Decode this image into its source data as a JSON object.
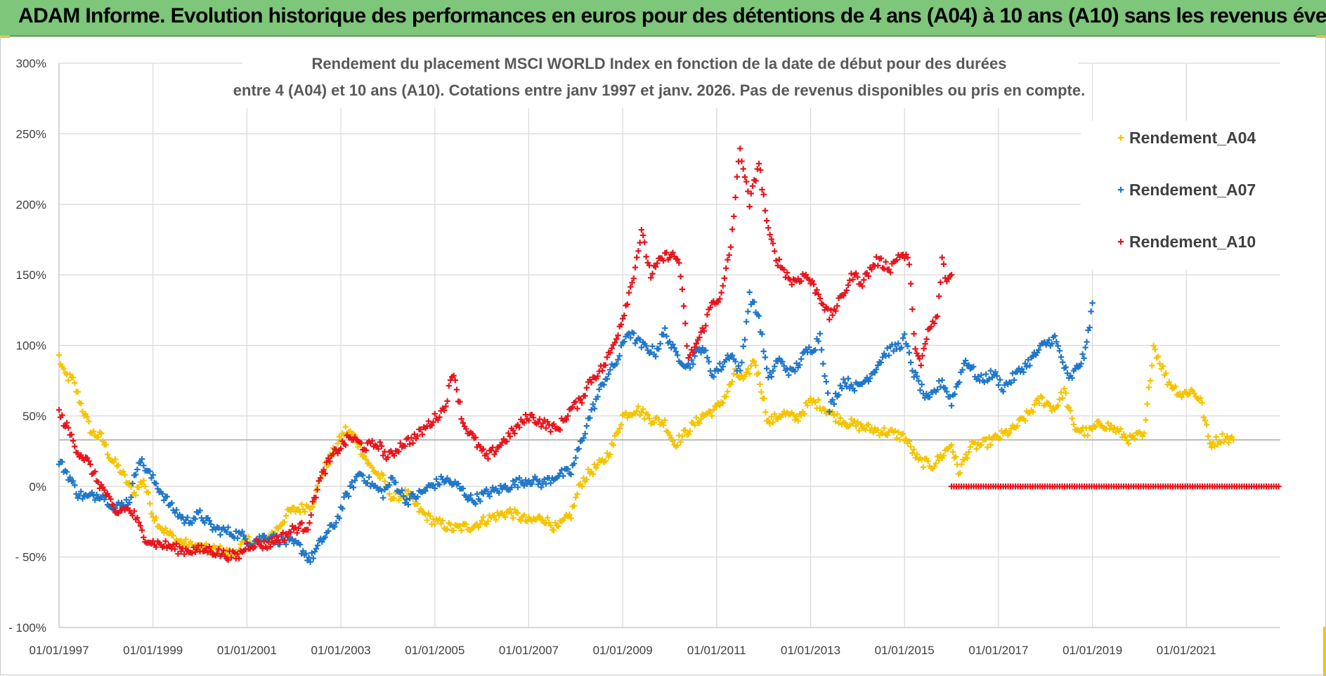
{
  "header": {
    "title": "ADAM Informe. Evolution historique des performances en euros pour des détentions de 4 ans (A04) à 10 ans (A10) sans les revenus éventuels"
  },
  "colors": {
    "banner": "#7dc67a",
    "a04": "#f5c400",
    "a07": "#1f77c9",
    "a10": "#e8141c"
  },
  "chart_data": {
    "type": "scatter",
    "title_lines": [
      "Rendement du placement MSCI WORLD Index en fonction de la date de début pour des durées",
      "entre 4 (A04) et 10 ans (A10). Cotations entre janv 1997 et janv. 2026. Pas de revenus disponibles ou pris en compte."
    ],
    "ylim": [
      -100,
      300
    ],
    "yticks": [
      300,
      250,
      200,
      150,
      100,
      50,
      0,
      -50,
      -100
    ],
    "ytick_labels": [
      "300%",
      "250%",
      "200%",
      "150%",
      "100%",
      "50%",
      "0%",
      "- 50%",
      "- 100%"
    ],
    "xlim": [
      1997.0,
      2023.0
    ],
    "xticks": [
      1997,
      1999,
      2001,
      2003,
      2005,
      2007,
      2009,
      2011,
      2013,
      2015,
      2017,
      2019,
      2021
    ],
    "xtick_labels": [
      "01/01/1997",
      "01/01/1999",
      "01/01/2001",
      "01/01/2003",
      "01/01/2005",
      "01/01/2007",
      "01/01/2009",
      "01/01/2011",
      "01/01/2013",
      "01/01/2015",
      "01/01/2017",
      "01/01/2019",
      "01/01/2021"
    ],
    "reference_line": 33,
    "legend": [
      "Rendement_A04",
      "Rendement_A07",
      "Rendement_A10"
    ],
    "legend_position": "top-right",
    "series": [
      {
        "name": "Rendement_A04",
        "x": [
          1997.0,
          1997.1,
          1997.3,
          1997.5,
          1997.7,
          1997.9,
          1998.1,
          1998.3,
          1998.5,
          1998.6,
          1998.8,
          1999.0,
          1999.2,
          1999.5,
          1999.8,
          2000.1,
          2000.4,
          2000.7,
          2001.0,
          2001.3,
          2001.6,
          2001.9,
          2002.2,
          2002.4,
          2002.6,
          2002.9,
          2003.1,
          2003.3,
          2003.6,
          2003.9,
          2004.1,
          2004.4,
          2004.7,
          2005.0,
          2005.4,
          2005.8,
          2006.2,
          2006.6,
          2007.0,
          2007.3,
          2007.6,
          2007.9,
          2008.1,
          2008.3,
          2008.6,
          2008.8,
          2009.0,
          2009.3,
          2009.6,
          2009.9,
          2010.1,
          2010.4,
          2010.7,
          2011.0,
          2011.2,
          2011.4,
          2011.6,
          2011.8,
          2011.95,
          2012.1,
          2012.4,
          2012.7,
          2013.0,
          2013.2,
          2013.5,
          2013.8,
          2014.1,
          2014.4,
          2014.7,
          2015.0,
          2015.3,
          2015.6,
          2015.8,
          2016.0,
          2016.15,
          2016.4,
          2016.7,
          2017.0,
          2017.3,
          2017.6,
          2017.9,
          2018.2,
          2018.4,
          2018.6,
          2018.9,
          2019.2,
          2019.5,
          2019.8,
          2020.0,
          2020.1,
          2020.3,
          2020.6,
          2020.9,
          2021.1,
          2021.3,
          2021.5,
          2021.8,
          2022.0
        ],
        "y": [
          92,
          80,
          75,
          55,
          38,
          35,
          20,
          12,
          0,
          -5,
          5,
          -20,
          -30,
          -38,
          -42,
          -44,
          -45,
          -48,
          -38,
          -40,
          -32,
          -18,
          -15,
          -12,
          10,
          28,
          40,
          35,
          15,
          5,
          -8,
          -5,
          -18,
          -25,
          -30,
          -28,
          -22,
          -18,
          -25,
          -22,
          -30,
          -20,
          2,
          10,
          18,
          30,
          50,
          55,
          48,
          45,
          30,
          40,
          50,
          55,
          65,
          80,
          75,
          90,
          70,
          45,
          52,
          48,
          60,
          58,
          50,
          45,
          42,
          40,
          38,
          35,
          18,
          15,
          22,
          30,
          10,
          28,
          30,
          35,
          40,
          50,
          62,
          55,
          68,
          42,
          38,
          45,
          40,
          33,
          36,
          35,
          100,
          75,
          65,
          68,
          62,
          30,
          35,
          33
        ]
      },
      {
        "name": "Rendement_A07",
        "x": [
          1997.0,
          1997.2,
          1997.4,
          1997.6,
          1997.9,
          1998.2,
          1998.5,
          1998.7,
          1998.9,
          1999.1,
          1999.4,
          1999.7,
          2000.0,
          2000.3,
          2000.6,
          2000.9,
          2001.1,
          2001.4,
          2001.7,
          2001.9,
          2002.1,
          2002.35,
          2002.6,
          2002.9,
          2003.1,
          2003.4,
          2003.7,
          2003.9,
          2004.1,
          2004.4,
          2004.7,
          2004.9,
          2005.2,
          2005.5,
          2005.8,
          2006.1,
          2006.4,
          2006.7,
          2007.0,
          2007.3,
          2007.6,
          2007.9,
          2008.1,
          2008.3,
          2008.6,
          2008.9,
          2009.1,
          2009.4,
          2009.7,
          2009.9,
          2010.1,
          2010.4,
          2010.7,
          2010.9,
          2011.1,
          2011.3,
          2011.5,
          2011.7,
          2011.9,
          2012.1,
          2012.3,
          2012.6,
          2012.9,
          2013.1,
          2013.2,
          2013.4,
          2013.7,
          2014.0,
          2014.3,
          2014.6,
          2014.9,
          2015.0,
          2015.2,
          2015.5,
          2015.8,
          2016.0,
          2016.3,
          2016.6,
          2016.9,
          2017.1,
          2017.4,
          2017.7,
          2017.95,
          2018.2,
          2018.5,
          2018.7,
          2018.85,
          2019.0
        ],
        "y": [
          18,
          8,
          -5,
          -8,
          -5,
          -15,
          -10,
          20,
          10,
          0,
          -15,
          -25,
          -20,
          -30,
          -32,
          -35,
          -40,
          -35,
          -38,
          -40,
          -42,
          -52,
          -38,
          -25,
          -8,
          10,
          0,
          -5,
          5,
          -10,
          -5,
          0,
          5,
          0,
          -10,
          -5,
          -2,
          2,
          5,
          2,
          8,
          10,
          30,
          50,
          75,
          90,
          110,
          100,
          95,
          110,
          95,
          85,
          100,
          80,
          85,
          95,
          80,
          135,
          120,
          75,
          90,
          80,
          95,
          100,
          108,
          55,
          75,
          70,
          80,
          95,
          100,
          105,
          80,
          60,
          75,
          60,
          90,
          75,
          80,
          70,
          80,
          90,
          100,
          105,
          75,
          85,
          95,
          130
        ]
      },
      {
        "name": "Rendement_A10",
        "x": [
          1997.0,
          1997.2,
          1997.4,
          1997.6,
          1997.8,
          1998.0,
          1998.2,
          1998.4,
          1998.6,
          1998.8,
          1999.0,
          1999.3,
          1999.6,
          1999.9,
          2000.2,
          2000.5,
          2000.8,
          2001.0,
          2001.2,
          2001.4,
          2001.6,
          2001.8,
          2002.0,
          2002.3,
          2002.5,
          2002.7,
          2002.9,
          2003.2,
          2003.5,
          2003.8,
          2004.0,
          2004.3,
          2004.6,
          2004.9,
          2005.2,
          2005.4,
          2005.6,
          2005.8,
          2006.1,
          2006.4,
          2006.7,
          2007.0,
          2007.3,
          2007.6,
          2007.9,
          2008.1,
          2008.3,
          2008.6,
          2008.8,
          2009.0,
          2009.2,
          2009.4,
          2009.6,
          2009.8,
          2010.0,
          2010.2,
          2010.4,
          2010.7,
          2010.9,
          2011.1,
          2011.3,
          2011.5,
          2011.7,
          2011.9,
          2012.1,
          2012.3,
          2012.6,
          2012.9,
          2013.2,
          2013.4,
          2013.6,
          2013.9,
          2014.1,
          2014.4,
          2014.7,
          2014.9,
          2015.1,
          2015.2,
          2015.35,
          2015.5,
          2015.7,
          2015.8,
          2015.9,
          2016.0
        ],
        "y": [
          52,
          40,
          25,
          18,
          5,
          -5,
          -20,
          -15,
          -20,
          -35,
          -40,
          -42,
          -45,
          -45,
          -45,
          -48,
          -50,
          -42,
          -40,
          -42,
          -38,
          -35,
          -30,
          -28,
          0,
          15,
          25,
          35,
          28,
          30,
          20,
          30,
          35,
          45,
          55,
          82,
          45,
          35,
          20,
          30,
          40,
          50,
          45,
          40,
          55,
          60,
          75,
          85,
          100,
          120,
          145,
          180,
          150,
          160,
          165,
          160,
          90,
          110,
          130,
          135,
          170,
          240,
          200,
          230,
          180,
          160,
          145,
          150,
          135,
          120,
          130,
          150,
          145,
          160,
          155,
          165,
          160,
          105,
          85,
          110,
          120,
          160,
          145,
          150
        ]
      },
      {
        "name": "Rendement_A10 (zero tail)",
        "x_start": 2016.0,
        "x_end": 2023.0,
        "y": 0
      }
    ]
  }
}
